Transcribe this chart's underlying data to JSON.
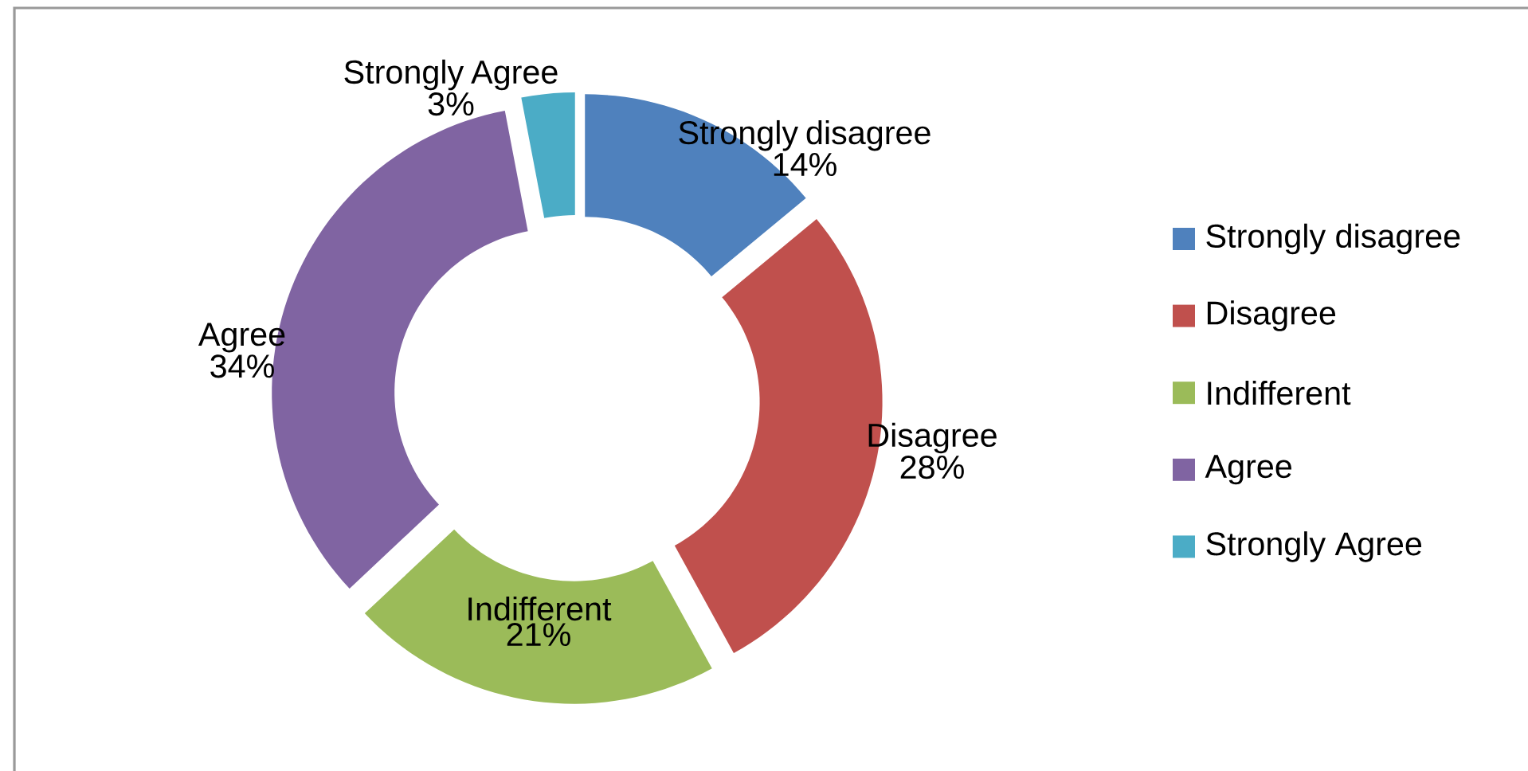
{
  "chart_data": {
    "type": "donut",
    "categories": [
      "Strongly disagree",
      "Disagree",
      "Indifferent",
      "Agree",
      "Strongly Agree"
    ],
    "values": [
      14,
      28,
      21,
      34,
      3
    ],
    "value_labels": [
      "14%",
      "28%",
      "21%",
      "34%",
      "3%"
    ],
    "colors": [
      "#4f81bd",
      "#c0504d",
      "#9bbb59",
      "#8064a2",
      "#4bacc6"
    ],
    "legend": "right"
  }
}
